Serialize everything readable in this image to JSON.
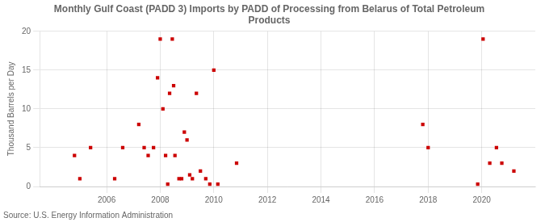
{
  "chart_data": {
    "type": "scatter",
    "title": "Monthly Gulf Coast (PADD 3) Imports by PADD of Processing from Belarus of Total Petroleum\nProducts",
    "ylabel": "Thousand Barrels per Day",
    "annotation": "Source: U.S. Energy Information Administration",
    "color": "#cc0000",
    "marker": "square",
    "xlim": [
      2003.5,
      2022.0
    ],
    "ylim": [
      0,
      20
    ],
    "xticks": [
      2006,
      2008,
      2010,
      2012,
      2014,
      2016,
      2018,
      2020
    ],
    "yticks": [
      0,
      5,
      10,
      15,
      20
    ],
    "grid": true,
    "x": [
      2004.8,
      2005.0,
      2005.4,
      2006.3,
      2006.6,
      2007.2,
      2007.4,
      2007.55,
      2007.75,
      2007.9,
      2008.0,
      2008.1,
      2008.2,
      2008.28,
      2008.35,
      2008.45,
      2008.5,
      2008.55,
      2008.7,
      2008.8,
      2008.9,
      2009.0,
      2009.1,
      2009.2,
      2009.35,
      2009.5,
      2009.7,
      2009.85,
      2010.0,
      2010.15,
      2010.85,
      2017.8,
      2018.0,
      2019.85,
      2020.05,
      2020.3,
      2020.55,
      2020.75,
      2021.2
    ],
    "values": [
      4.0,
      1.0,
      5.0,
      1.0,
      5.0,
      8.0,
      5.0,
      4.0,
      5.0,
      14.0,
      19.0,
      10.0,
      4.0,
      0.3,
      12.0,
      19.0,
      13.0,
      4.0,
      1.0,
      1.0,
      7.0,
      6.0,
      1.5,
      1.0,
      12.0,
      2.0,
      1.0,
      0.3,
      15.0,
      0.3,
      3.0,
      8.0,
      5.0,
      0.3,
      19.0,
      3.0,
      5.0,
      3.0,
      2.0
    ]
  }
}
